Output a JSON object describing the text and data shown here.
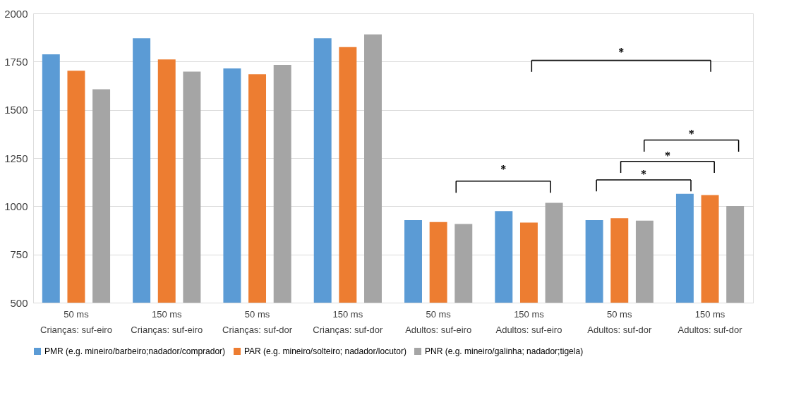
{
  "chart_data": {
    "type": "bar",
    "categories": [
      "50 ms\nCrianças: suf-eiro",
      "150 ms\nCrianças: suf-eiro",
      "50 ms\nCrianças: suf-dor",
      "150 ms\nCrianças: suf-dor",
      "50 ms\nAdultos: suf-eiro",
      "150 ms\nAdultos: suf-eiro",
      "50 ms\nAdultos: suf-dor",
      "150 ms\nAdultos: suf-dor"
    ],
    "series": [
      {
        "name": "PMR (e.g. mineiro/barbeiro;nadador/comprador)",
        "color": "#5b9bd5",
        "values": [
          1788,
          1871,
          1715,
          1871,
          928,
          975,
          928,
          1064
        ]
      },
      {
        "name": "PAR (e.g. mineiro/solteiro; nadador/locutor)",
        "color": "#ed7d31",
        "values": [
          1703,
          1761,
          1684,
          1825,
          918,
          915,
          938,
          1058
        ]
      },
      {
        "name": "PNR (e.g. mineiro/galinha; nadador;tigela)",
        "color": "#a5a5a5",
        "values": [
          1607,
          1698,
          1733,
          1891,
          908,
          1018,
          925,
          1001
        ]
      }
    ],
    "ylim": [
      500,
      2000
    ],
    "yticks": [
      500,
      750,
      1000,
      1250,
      1500,
      1750,
      2000
    ],
    "grid": "y",
    "legend": "bottom",
    "annotations": [
      "*",
      "*",
      "*",
      "*",
      "*"
    ]
  }
}
